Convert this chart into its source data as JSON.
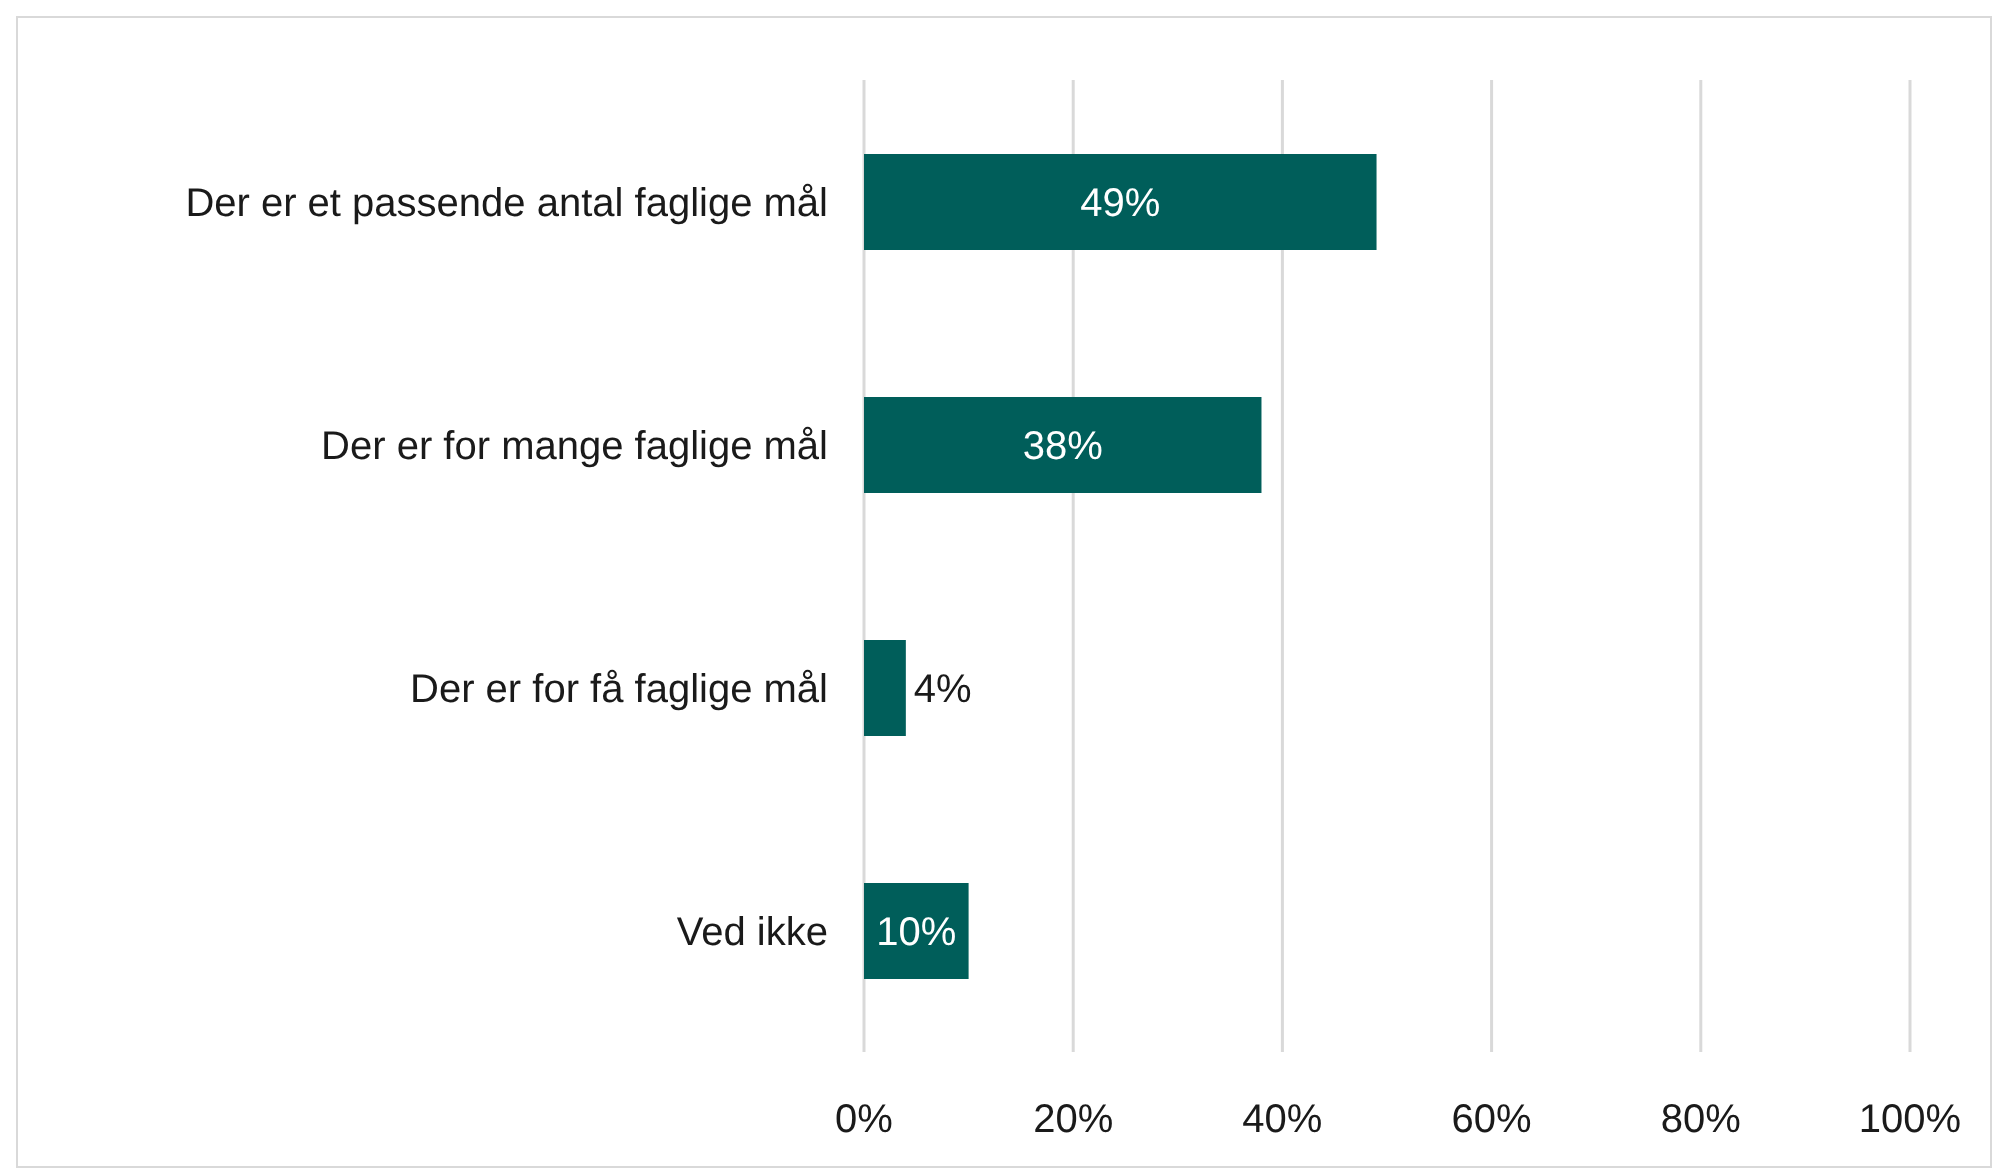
{
  "chart_data": {
    "type": "bar",
    "orientation": "horizontal",
    "categories": [
      "Der er et passende antal faglige mål",
      "Der er for mange faglige mål",
      "Der er for få faglige mål",
      "Ved ikke"
    ],
    "values": [
      49,
      38,
      4,
      10
    ],
    "color": "#005e5a",
    "xlim": [
      0,
      100
    ],
    "xticks": [
      {
        "value": 0,
        "label": "0%"
      },
      {
        "value": 20,
        "label": "20%"
      },
      {
        "value": 40,
        "label": "40%"
      },
      {
        "value": 60,
        "label": "60%"
      },
      {
        "value": 80,
        "label": "80%"
      },
      {
        "value": 100,
        "label": "100%"
      }
    ],
    "value_labels": [
      "49%",
      "38%",
      "4%",
      "10%"
    ],
    "grid": "x"
  }
}
